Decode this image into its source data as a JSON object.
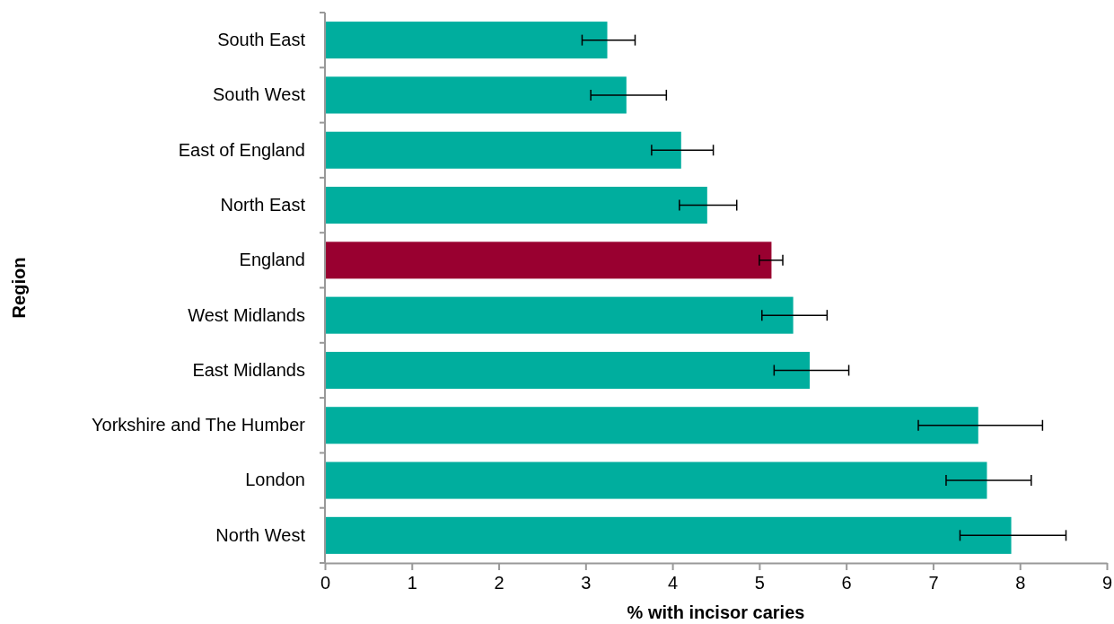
{
  "chart_data": {
    "type": "bar",
    "orientation": "horizontal",
    "xlabel": "% with incisor caries",
    "ylabel": "Region",
    "categories": [
      "South East",
      "South West",
      "East of England",
      "North East",
      "England",
      "West Midlands",
      "East Midlands",
      "Yorkshire and The Humber",
      "London",
      "North West"
    ],
    "values": [
      3.25,
      3.47,
      4.1,
      4.4,
      5.14,
      5.39,
      5.58,
      7.52,
      7.62,
      7.9
    ],
    "colors": [
      "#00ae9e",
      "#00ae9e",
      "#00ae9e",
      "#00ae9e",
      "#990030",
      "#00ae9e",
      "#00ae9e",
      "#00ae9e",
      "#00ae9e",
      "#00ae9e"
    ],
    "errors": [
      [
        2.96,
        3.57
      ],
      [
        3.06,
        3.93
      ],
      [
        3.76,
        4.47
      ],
      [
        4.08,
        4.74
      ],
      [
        5.0,
        5.27
      ],
      [
        5.03,
        5.78
      ],
      [
        5.17,
        6.03
      ],
      [
        6.83,
        8.26
      ],
      [
        7.15,
        8.13
      ],
      [
        7.31,
        8.53
      ]
    ],
    "xlim": [
      0,
      9
    ],
    "xticks": [
      0,
      1,
      2,
      3,
      4,
      5,
      6,
      7,
      8,
      9
    ],
    "grid": false
  }
}
